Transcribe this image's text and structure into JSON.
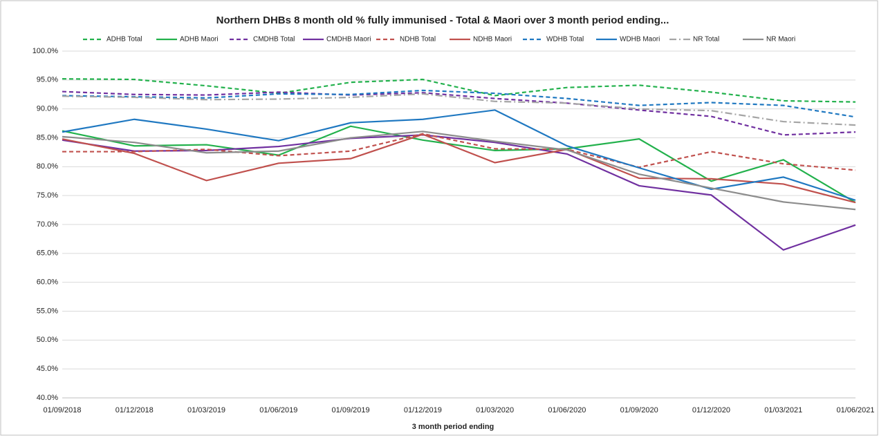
{
  "chart_data": {
    "type": "line",
    "title": "Northern DHBs 8 month old % fully immunised - Total & Maori over 3 month period ending...",
    "x_label": "3 month period ending",
    "categories": [
      "01/09/2018",
      "01/12/2018",
      "01/03/2019",
      "01/06/2019",
      "01/09/2019",
      "01/12/2019",
      "01/03/2020",
      "01/06/2020",
      "01/09/2020",
      "01/12/2020",
      "01/03/2021",
      "01/06/2021"
    ],
    "ylim": [
      40,
      100
    ],
    "yticks": [
      {
        "value": 40,
        "label": "40.0%"
      },
      {
        "value": 45,
        "label": "45.0%"
      },
      {
        "value": 50,
        "label": "50.0%"
      },
      {
        "value": 55,
        "label": "55.0%"
      },
      {
        "value": 60,
        "label": "60.0%"
      },
      {
        "value": 65,
        "label": "65.0%"
      },
      {
        "value": 70,
        "label": "70.0%"
      },
      {
        "value": 75,
        "label": "75.0%"
      },
      {
        "value": 80,
        "label": "80.0%"
      },
      {
        "value": 85,
        "label": "85.0%"
      },
      {
        "value": 90,
        "label": "90.0%"
      },
      {
        "value": 95,
        "label": "95.0%"
      },
      {
        "value": 100,
        "label": "100.0%"
      }
    ],
    "grid": true,
    "legend": "top",
    "series": [
      {
        "name": "ADHB Total",
        "color": "#22b14c",
        "dash": "dashed",
        "values": [
          95.2,
          95.1,
          94.0,
          92.7,
          94.6,
          95.1,
          92.3,
          93.7,
          94.1,
          92.9,
          91.4,
          91.2
        ]
      },
      {
        "name": "ADHB Maori",
        "color": "#22b14c",
        "dash": "solid",
        "values": [
          86.2,
          83.6,
          83.8,
          82.0,
          87.0,
          84.6,
          82.8,
          83.1,
          84.8,
          77.5,
          81.2,
          73.8
        ]
      },
      {
        "name": "CMDHB Total",
        "color": "#7030a0",
        "dash": "dashed",
        "values": [
          93.0,
          92.5,
          92.4,
          92.9,
          92.4,
          92.8,
          91.8,
          91.0,
          89.8,
          88.7,
          85.5,
          86.0
        ]
      },
      {
        "name": "CMDHB Maori",
        "color": "#7030a0",
        "dash": "solid",
        "values": [
          84.6,
          82.7,
          82.8,
          83.5,
          84.9,
          85.5,
          84.2,
          82.2,
          76.7,
          75.1,
          65.6,
          69.9
        ]
      },
      {
        "name": "NDHB Total",
        "color": "#c0504d",
        "dash": "dashed",
        "values": [
          82.6,
          82.6,
          83.0,
          81.9,
          82.7,
          85.7,
          83.1,
          83.0,
          79.9,
          82.6,
          80.5,
          79.4
        ]
      },
      {
        "name": "NDHB Maori",
        "color": "#c0504d",
        "dash": "solid",
        "values": [
          84.8,
          82.3,
          77.6,
          80.6,
          81.4,
          85.6,
          80.7,
          83.0,
          78.0,
          77.9,
          77.0,
          73.8
        ]
      },
      {
        "name": "WDHB Total",
        "color": "#1f78c1",
        "dash": "dashed",
        "values": [
          92.3,
          92.1,
          91.9,
          92.6,
          92.5,
          93.2,
          92.7,
          91.8,
          90.6,
          91.1,
          90.6,
          88.6
        ]
      },
      {
        "name": "WDHB Maori",
        "color": "#1f78c1",
        "dash": "solid",
        "values": [
          86.0,
          88.2,
          86.5,
          84.5,
          87.6,
          88.2,
          89.8,
          83.6,
          79.8,
          76.1,
          78.2,
          74.2
        ]
      },
      {
        "name": "NR Total",
        "color": "#a5a5a5",
        "dash": "dashdot",
        "values": [
          92.2,
          92.0,
          91.6,
          91.7,
          92.0,
          92.6,
          91.3,
          91.0,
          90.0,
          89.7,
          87.8,
          87.2
        ]
      },
      {
        "name": "NR Maori",
        "color": "#8c8c8c",
        "dash": "solid",
        "values": [
          85.2,
          84.2,
          82.4,
          82.7,
          85.0,
          86.1,
          84.4,
          82.9,
          78.7,
          76.3,
          73.9,
          72.6
        ]
      }
    ]
  }
}
